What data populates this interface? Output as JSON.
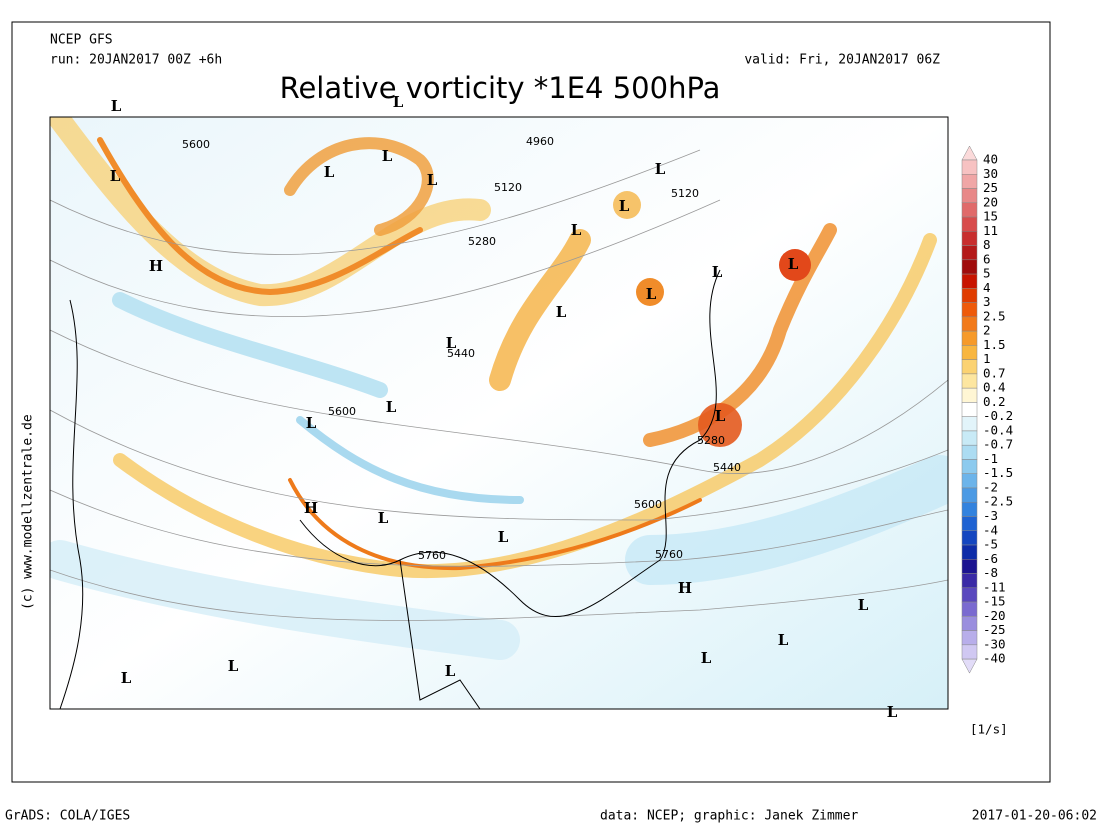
{
  "header": {
    "model": "NCEP GFS",
    "run": "run: 20JAN2017 00Z +6h",
    "valid": "valid: Fri, 20JAN2017 06Z",
    "title": "Relative vorticity *1E4 500hPa"
  },
  "colorbar": {
    "labels": [
      "40",
      "30",
      "25",
      "20",
      "15",
      "11",
      "8",
      "6",
      "5",
      "4",
      "3",
      "2.5",
      "2",
      "1.5",
      "1",
      "0.7",
      "0.4",
      "0.2",
      "-0.2",
      "-0.4",
      "-0.7",
      "-1",
      "-1.5",
      "-2",
      "-2.5",
      "-3",
      "-4",
      "-5",
      "-6",
      "-8",
      "-11",
      "-15",
      "-20",
      "-25",
      "-30",
      "-40"
    ],
    "unit": "[1/s]"
  },
  "map": {
    "contour_labels": [
      "5600",
      "4960",
      "5120",
      "5120",
      "5280",
      "5440",
      "5600",
      "5280",
      "5440",
      "5600",
      "5760",
      "5760"
    ],
    "pressure_centers": [
      "L",
      "L",
      "L",
      "L",
      "L",
      "L",
      "L",
      "L",
      "H",
      "L",
      "L",
      "L",
      "L",
      "L",
      "L",
      "L",
      "L",
      "L",
      "H",
      "L",
      "L",
      "H",
      "L",
      "L",
      "L",
      "L",
      "L",
      "L",
      "L"
    ]
  },
  "credit": "(c) www.modellzentrale.de",
  "footer": {
    "software": "GrADS: COLA/IGES",
    "source": "data: NCEP; graphic: Janek Zimmer",
    "timestamp": "2017-01-20-06:02"
  }
}
